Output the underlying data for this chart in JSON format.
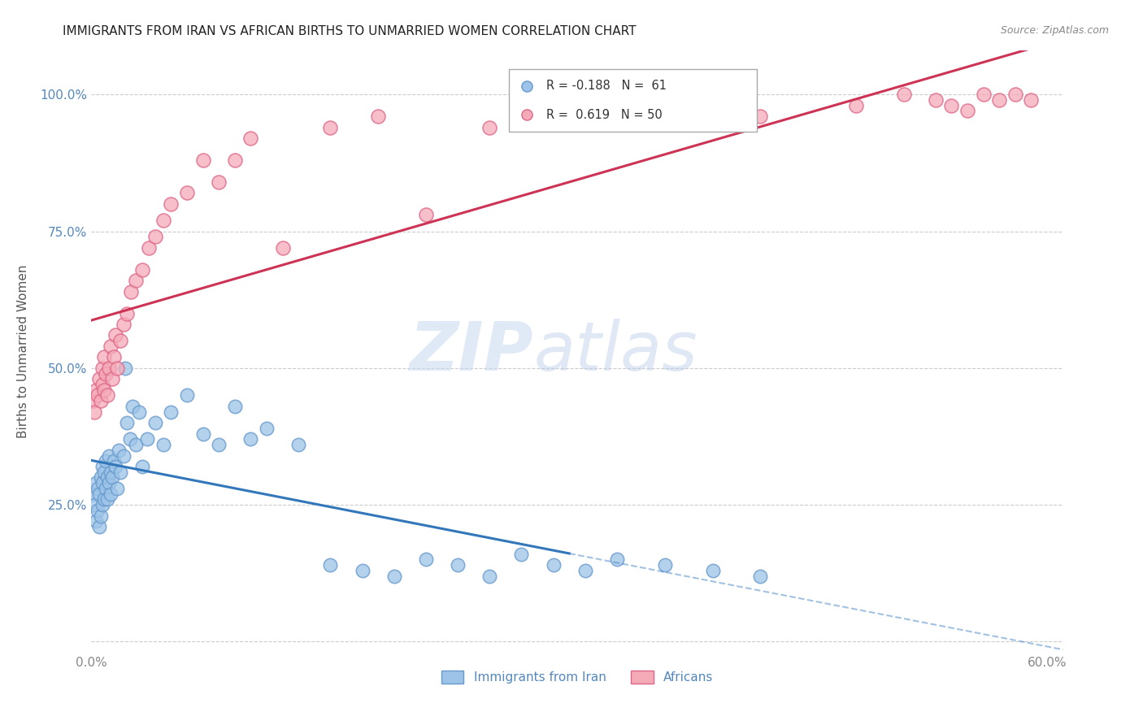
{
  "title": "IMMIGRANTS FROM IRAN VS AFRICAN BIRTHS TO UNMARRIED WOMEN CORRELATION CHART",
  "source": "Source: ZipAtlas.com",
  "ylabel": "Births to Unmarried Women",
  "xlim": [
    0.0,
    0.61
  ],
  "ylim": [
    -0.02,
    1.08
  ],
  "yticks": [
    0.0,
    0.25,
    0.5,
    0.75,
    1.0
  ],
  "ytick_labels": [
    "",
    "25.0%",
    "50.0%",
    "75.0%",
    "100.0%"
  ],
  "xticks": [
    0.0,
    0.1,
    0.2,
    0.3,
    0.4,
    0.5,
    0.6
  ],
  "xtick_labels": [
    "0.0%",
    "",
    "",
    "",
    "",
    "",
    "60.0%"
  ],
  "blue_face": "#9dc4e8",
  "blue_edge": "#6699cc",
  "pink_face": "#f5aab8",
  "pink_edge": "#dd6688",
  "reg_blue": "#3377bb",
  "reg_pink": "#cc3355",
  "background": "#ffffff",
  "grid_color": "#cccccc",
  "tick_color_y": "#5588bb",
  "tick_color_x": "#888888",
  "title_color": "#222222",
  "source_color": "#888888",
  "legend_text_color": "#333333",
  "bottom_legend_color": "#5588bb",
  "watermark_zip": "ZIP",
  "watermark_atlas": "atlas",
  "watermark_color_zip": "#c8d8f0",
  "watermark_color_atlas": "#b8cce8",
  "blue_label": "Immigrants from Iran",
  "pink_label": "Africans",
  "blue_R": -0.188,
  "blue_N": 61,
  "pink_R": 0.619,
  "pink_N": 50,
  "blue_line_x_end": 0.3,
  "blue_x": [
    0.001,
    0.002,
    0.003,
    0.003,
    0.004,
    0.004,
    0.005,
    0.005,
    0.006,
    0.006,
    0.007,
    0.007,
    0.007,
    0.008,
    0.008,
    0.009,
    0.009,
    0.01,
    0.01,
    0.011,
    0.011,
    0.012,
    0.012,
    0.013,
    0.014,
    0.015,
    0.016,
    0.017,
    0.018,
    0.02,
    0.021,
    0.022,
    0.024,
    0.026,
    0.028,
    0.03,
    0.032,
    0.035,
    0.04,
    0.045,
    0.05,
    0.06,
    0.07,
    0.08,
    0.09,
    0.1,
    0.11,
    0.13,
    0.15,
    0.17,
    0.19,
    0.21,
    0.23,
    0.25,
    0.27,
    0.29,
    0.31,
    0.33,
    0.36,
    0.39,
    0.42
  ],
  "blue_y": [
    0.27,
    0.25,
    0.22,
    0.29,
    0.24,
    0.28,
    0.21,
    0.27,
    0.23,
    0.3,
    0.25,
    0.29,
    0.32,
    0.26,
    0.31,
    0.28,
    0.33,
    0.26,
    0.3,
    0.29,
    0.34,
    0.27,
    0.31,
    0.3,
    0.33,
    0.32,
    0.28,
    0.35,
    0.31,
    0.34,
    0.5,
    0.4,
    0.37,
    0.43,
    0.36,
    0.42,
    0.32,
    0.37,
    0.4,
    0.36,
    0.42,
    0.45,
    0.38,
    0.36,
    0.43,
    0.37,
    0.39,
    0.36,
    0.14,
    0.13,
    0.12,
    0.15,
    0.14,
    0.12,
    0.16,
    0.14,
    0.13,
    0.15,
    0.14,
    0.13,
    0.12
  ],
  "pink_x": [
    0.001,
    0.002,
    0.003,
    0.004,
    0.005,
    0.006,
    0.007,
    0.007,
    0.008,
    0.008,
    0.009,
    0.01,
    0.011,
    0.012,
    0.013,
    0.014,
    0.015,
    0.016,
    0.018,
    0.02,
    0.022,
    0.025,
    0.028,
    0.032,
    0.036,
    0.04,
    0.045,
    0.05,
    0.06,
    0.07,
    0.08,
    0.09,
    0.1,
    0.12,
    0.15,
    0.18,
    0.21,
    0.25,
    0.3,
    0.35,
    0.42,
    0.48,
    0.51,
    0.53,
    0.54,
    0.55,
    0.56,
    0.57,
    0.58,
    0.59
  ],
  "pink_y": [
    0.44,
    0.42,
    0.46,
    0.45,
    0.48,
    0.44,
    0.47,
    0.5,
    0.46,
    0.52,
    0.49,
    0.45,
    0.5,
    0.54,
    0.48,
    0.52,
    0.56,
    0.5,
    0.55,
    0.58,
    0.6,
    0.64,
    0.66,
    0.68,
    0.72,
    0.74,
    0.77,
    0.8,
    0.82,
    0.88,
    0.84,
    0.88,
    0.92,
    0.72,
    0.94,
    0.96,
    0.78,
    0.94,
    0.96,
    0.98,
    0.96,
    0.98,
    1.0,
    0.99,
    0.98,
    0.97,
    1.0,
    0.99,
    1.0,
    0.99
  ]
}
